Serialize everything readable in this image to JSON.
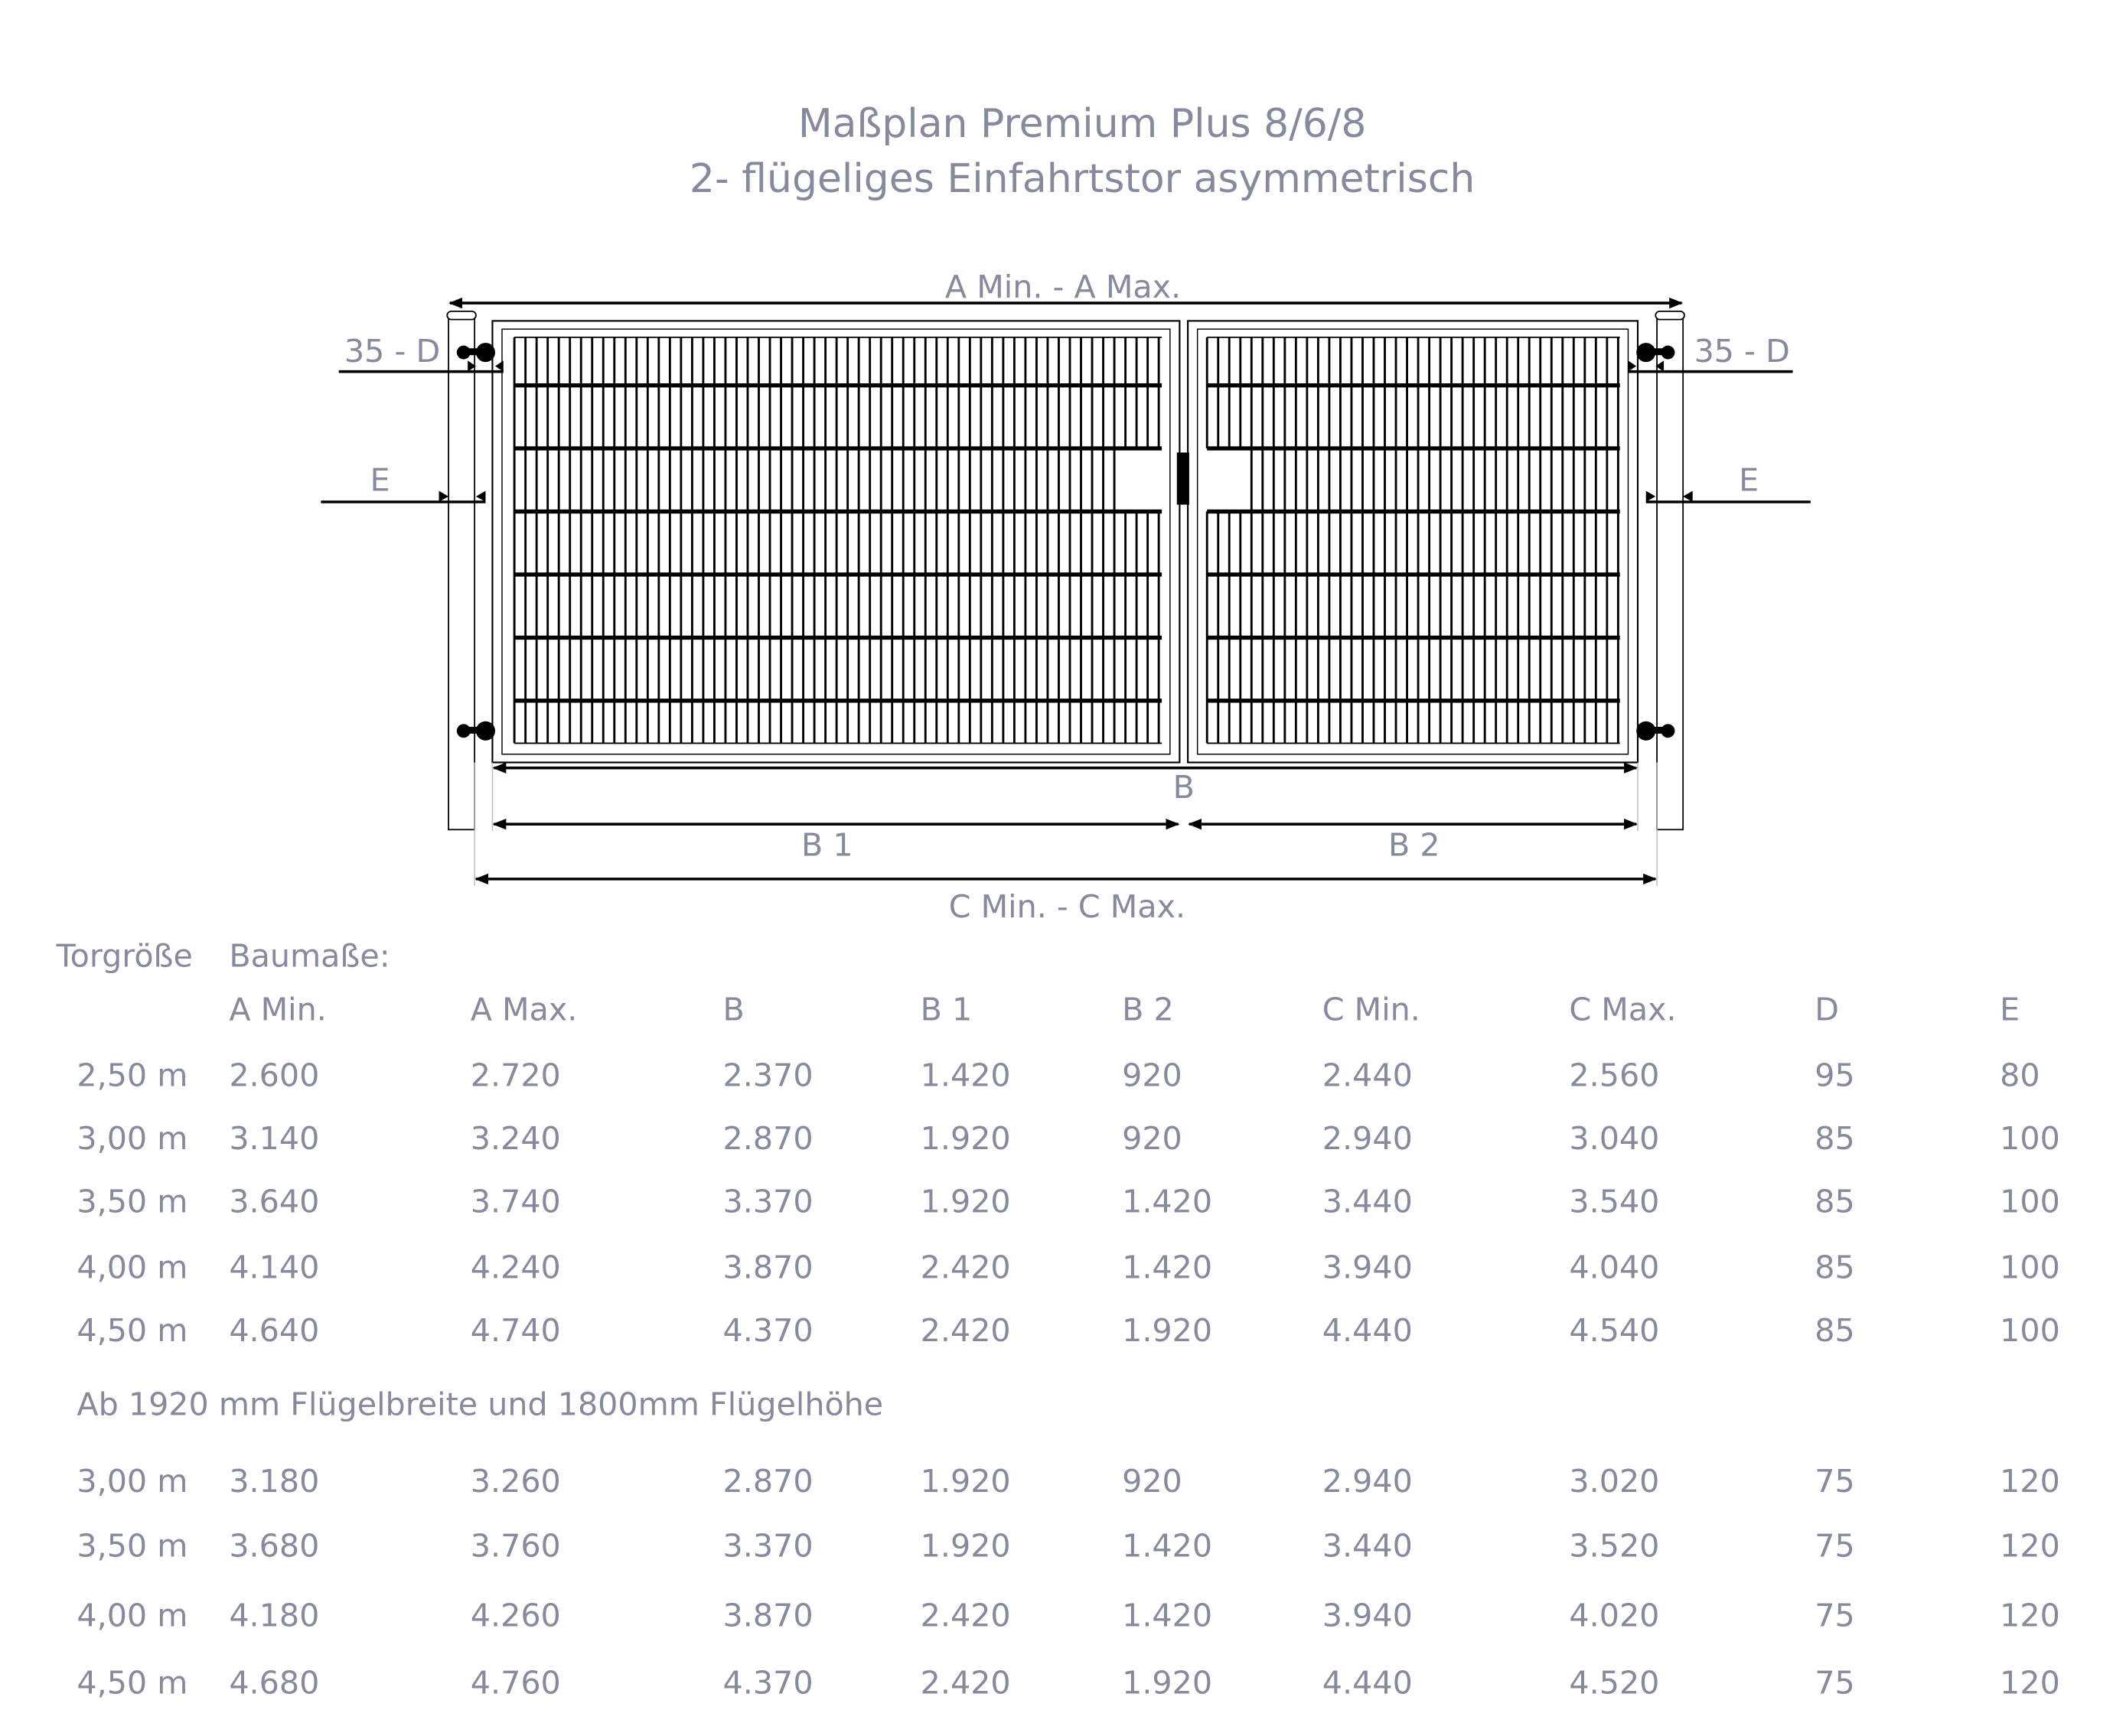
{
  "title": {
    "line1": "Maßplan Premium Plus 8/6/8",
    "line2": "2- flügeliges Einfahrtstor asymmetrisch"
  },
  "drawing": {
    "label_a": "A Min. - A Max.",
    "label_b": "B",
    "label_b1": "B 1",
    "label_b2": "B 2",
    "label_c": "C Min. - C Max.",
    "label_d_left": "35 - D",
    "label_d_right": "35 - D",
    "label_e_left": "E",
    "label_e_right": "E",
    "line_color": "#000000",
    "text_color": "#868a9c"
  },
  "table": {
    "size_header": "Torgröße",
    "dims_header": "Baumaße:",
    "columns": [
      "A Min.",
      "A Max.",
      "B",
      "B 1",
      "B 2",
      "C Min.",
      "C Max.",
      "D",
      "E"
    ],
    "rows": [
      [
        "2,50 m",
        "2.600",
        "2.720",
        "2.370",
        "1.420",
        "920",
        "2.440",
        "2.560",
        "95",
        "80"
      ],
      [
        "3,00 m",
        "3.140",
        "3.240",
        "2.870",
        "1.920",
        "920",
        "2.940",
        "3.040",
        "85",
        "100"
      ],
      [
        "3,50 m",
        "3.640",
        "3.740",
        "3.370",
        "1.920",
        "1.420",
        "3.440",
        "3.540",
        "85",
        "100"
      ],
      [
        "4,00 m",
        "4.140",
        "4.240",
        "3.870",
        "2.420",
        "1.420",
        "3.940",
        "4.040",
        "85",
        "100"
      ],
      [
        "4,50 m",
        "4.640",
        "4.740",
        "4.370",
        "2.420",
        "1.920",
        "4.440",
        "4.540",
        "85",
        "100"
      ]
    ],
    "note": "Ab 1920 mm Flügelbreite und 1800mm Flügelhöhe",
    "rows2": [
      [
        "3,00 m",
        "3.180",
        "3.260",
        "2.870",
        "1.920",
        "920",
        "2.940",
        "3.020",
        "75",
        "120"
      ],
      [
        "3,50 m",
        "3.680",
        "3.760",
        "3.370",
        "1.920",
        "1.420",
        "3.440",
        "3.520",
        "75",
        "120"
      ],
      [
        "4,00 m",
        "4.180",
        "4.260",
        "3.870",
        "2.420",
        "1.420",
        "3.940",
        "4.020",
        "75",
        "120"
      ],
      [
        "4,50 m",
        "4.680",
        "4.760",
        "4.370",
        "2.420",
        "1.920",
        "4.440",
        "4.520",
        "75",
        "120"
      ]
    ]
  }
}
